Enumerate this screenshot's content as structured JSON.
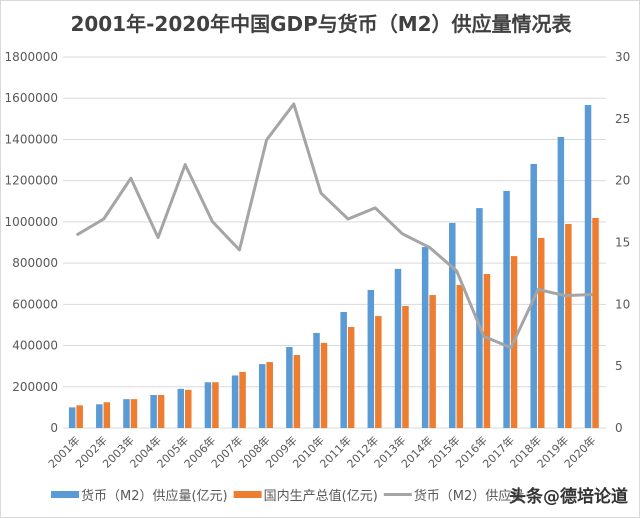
{
  "chart_data": {
    "type": "bar",
    "title": "2001年-2020年中国GDP与货币（M2）供应量情况表",
    "categories": [
      "2001年",
      "2002年",
      "2003年",
      "2004年",
      "2005年",
      "2006年",
      "2007年",
      "2008年",
      "2009年",
      "2010年",
      "2011年",
      "2012年",
      "2013年",
      "2014年",
      "2015年",
      "2016年",
      "2017年",
      "2018年",
      "2019年",
      "2020年"
    ],
    "y_left": {
      "range": [
        0,
        1800000
      ],
      "ticks": [
        0,
        200000,
        400000,
        600000,
        800000,
        1000000,
        1200000,
        1400000,
        1600000,
        1800000
      ]
    },
    "y_right": {
      "range": [
        0,
        30
      ],
      "ticks": [
        0,
        5,
        10,
        15,
        20,
        25,
        30
      ]
    },
    "grid": true,
    "legend_position": "bottom",
    "series": [
      {
        "name": "货币（M2）供应量(亿元)",
        "type": "bar",
        "axis": "left",
        "color": "#5b9bd5",
        "values": [
          100000,
          115000,
          140000,
          160000,
          190000,
          222000,
          255000,
          310000,
          393000,
          461000,
          563000,
          670000,
          772000,
          878000,
          995000,
          1067000,
          1150000,
          1281000,
          1412000,
          1567000
        ]
      },
      {
        "name": "国内生产总值(亿元)",
        "type": "bar",
        "axis": "left",
        "color": "#ed7d31",
        "values": [
          110000,
          125000,
          140000,
          160000,
          185000,
          222000,
          272000,
          320000,
          354000,
          413000,
          490000,
          543000,
          592000,
          645000,
          694000,
          747000,
          834000,
          922000,
          990000,
          1019000
        ]
      },
      {
        "name": "货币（M2）供应量",
        "type": "line",
        "axis": "right",
        "color": "#a5a5a5",
        "values": [
          15.6,
          16.9,
          20.2,
          15.4,
          21.3,
          16.7,
          14.4,
          23.3,
          26.2,
          19.0,
          16.9,
          17.8,
          15.7,
          14.6,
          12.7,
          7.4,
          6.5,
          11.2,
          10.7,
          10.8
        ]
      }
    ]
  },
  "watermark": "头条@德培论道"
}
